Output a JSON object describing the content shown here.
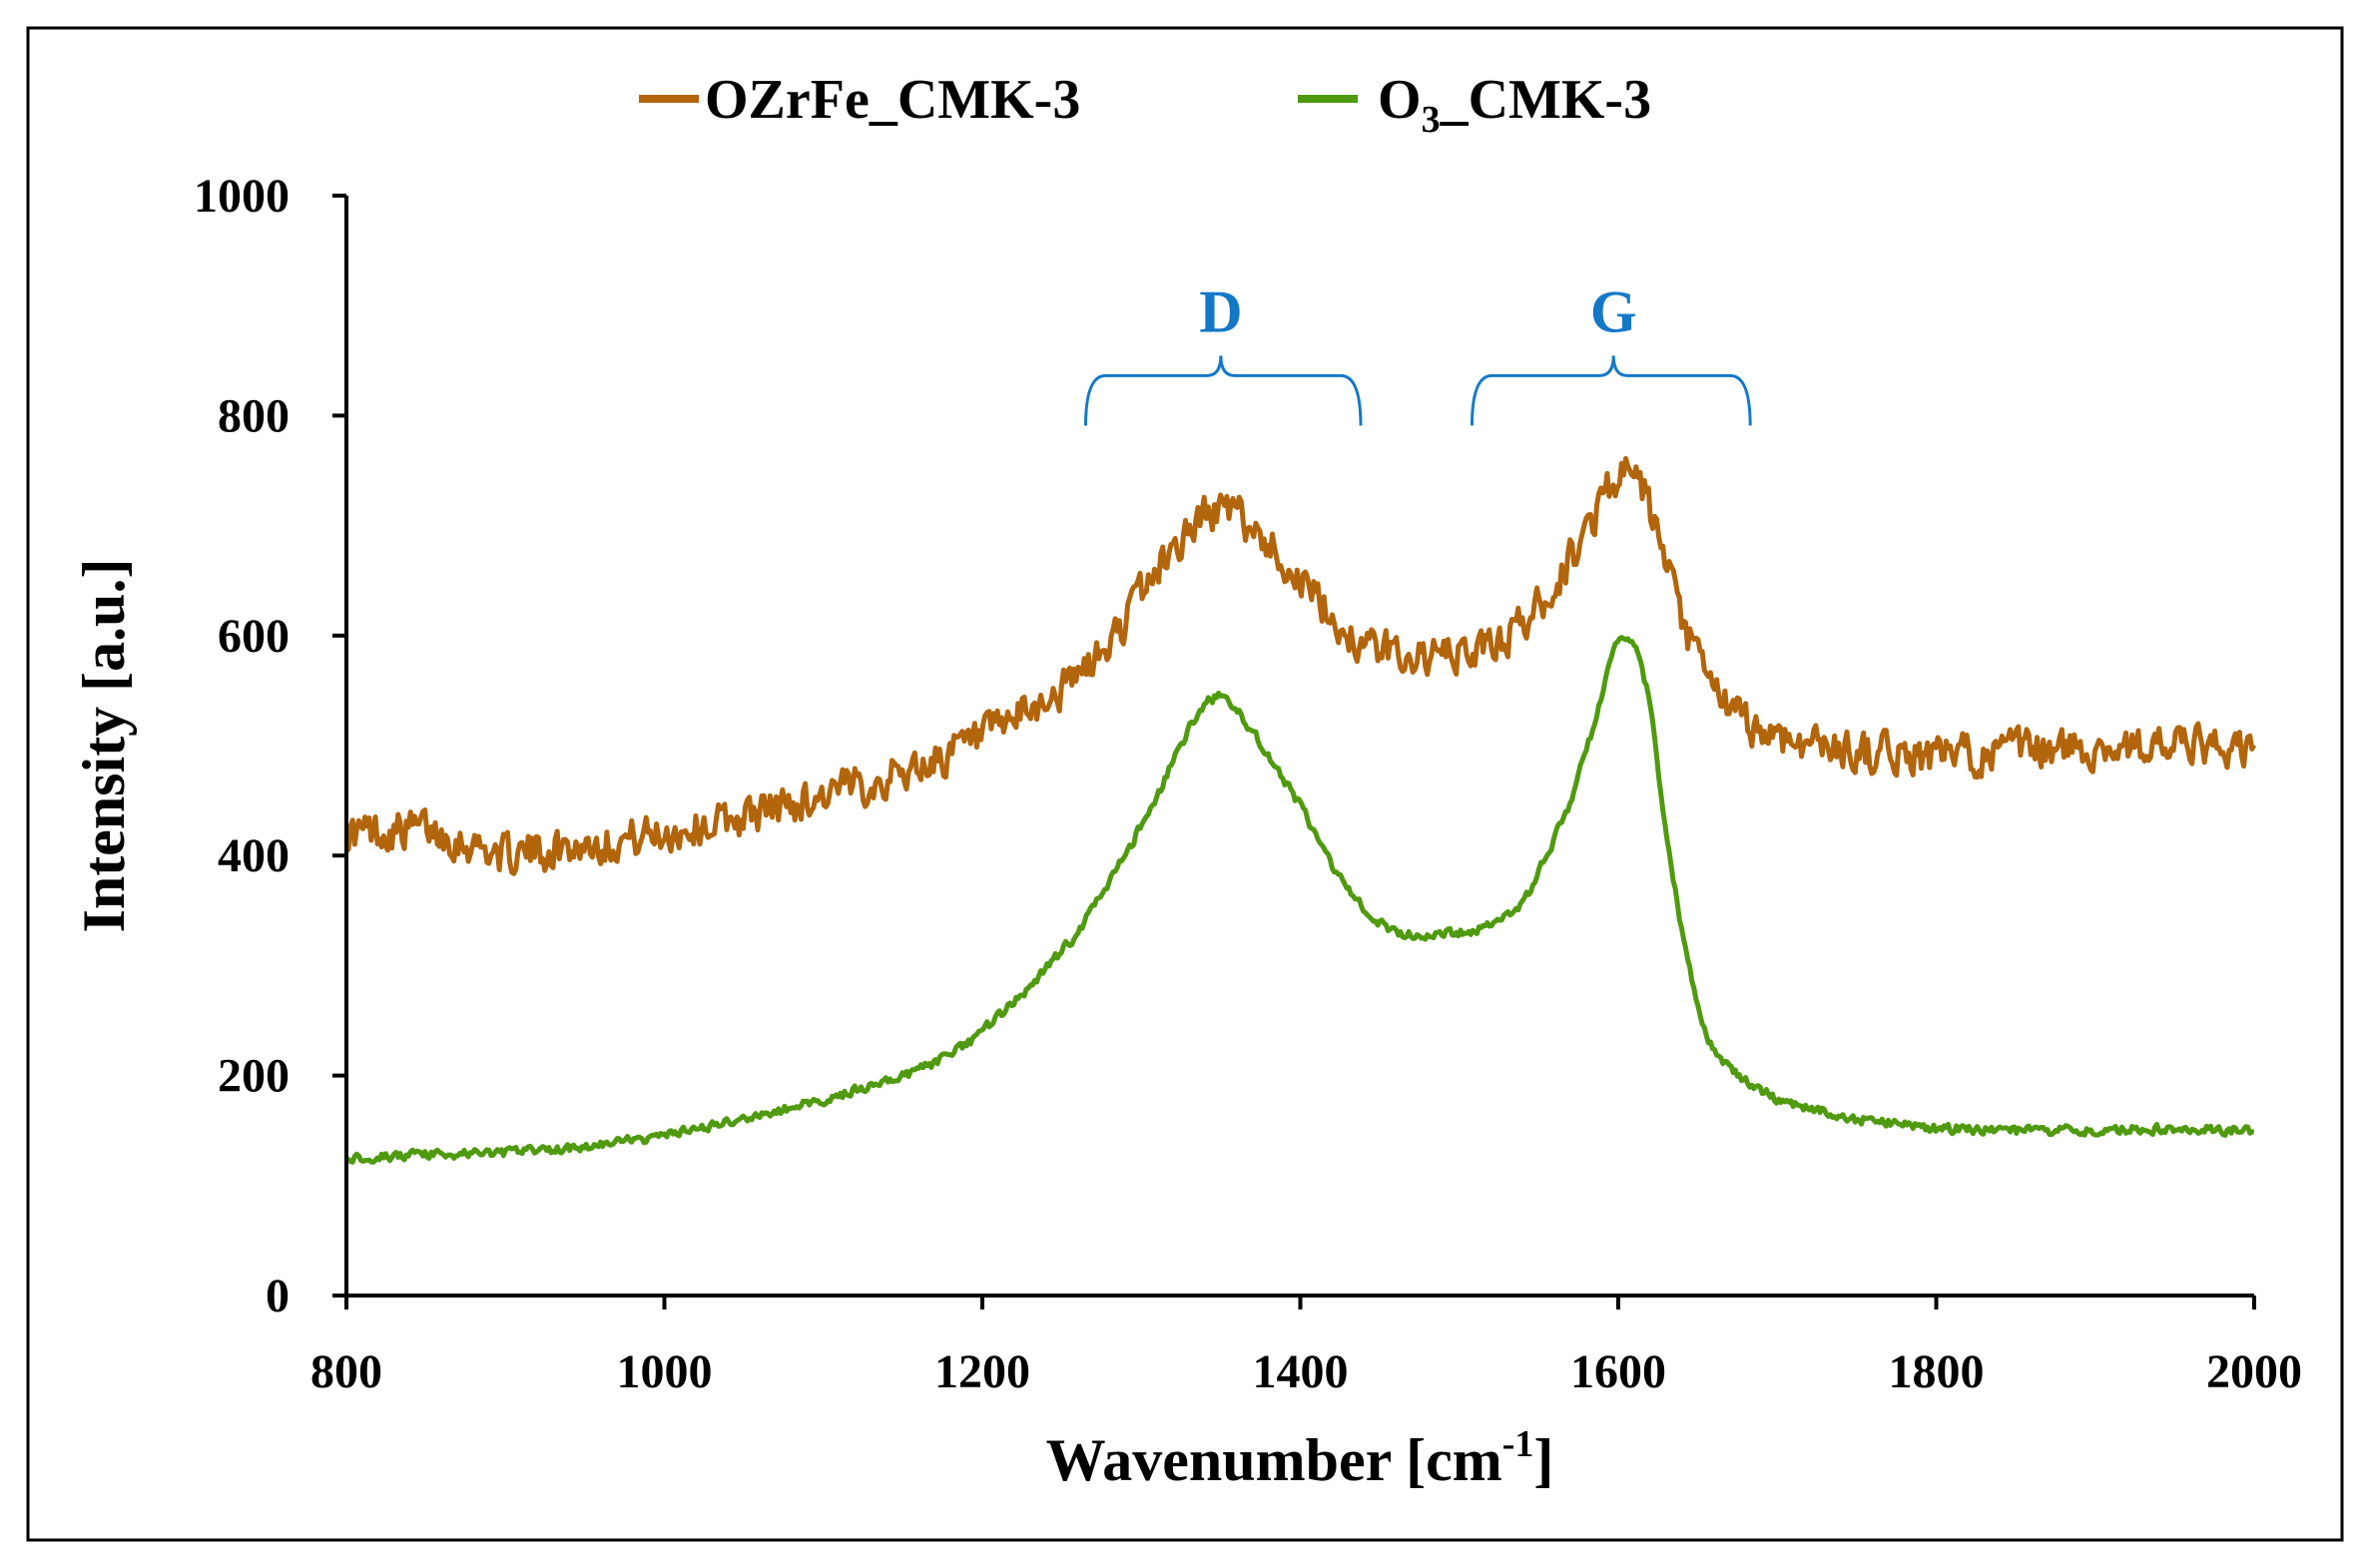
{
  "chart_data": {
    "type": "line",
    "title": "",
    "xlabel": "Wavenumber [cm",
    "xlabel_sup": "-1",
    "xlabel_close": "]",
    "ylabel": "Intensity [a.u.]",
    "xlim": [
      800,
      2000
    ],
    "ylim": [
      0,
      1000
    ],
    "x_ticks": [
      "800",
      "1000",
      "1200",
      "1400",
      "1600",
      "1800",
      "2000"
    ],
    "y_ticks": [
      "0",
      "200",
      "400",
      "600",
      "800",
      "1000"
    ],
    "grid": false,
    "legend_position": "top-center",
    "series": [
      {
        "name": "OZrFe_CMK-3",
        "color": "#B3650C",
        "noise": 25,
        "points": [
          [
            800,
            420
          ],
          [
            850,
            425
          ],
          [
            900,
            400
          ],
          [
            950,
            410
          ],
          [
            1000,
            420
          ],
          [
            1050,
            435
          ],
          [
            1100,
            455
          ],
          [
            1150,
            475
          ],
          [
            1200,
            505
          ],
          [
            1250,
            550
          ],
          [
            1280,
            590
          ],
          [
            1300,
            640
          ],
          [
            1320,
            680
          ],
          [
            1340,
            710
          ],
          [
            1350,
            715
          ],
          [
            1360,
            710
          ],
          [
            1380,
            685
          ],
          [
            1400,
            650
          ],
          [
            1420,
            615
          ],
          [
            1440,
            590
          ],
          [
            1460,
            585
          ],
          [
            1480,
            580
          ],
          [
            1500,
            582
          ],
          [
            1520,
            590
          ],
          [
            1540,
            610
          ],
          [
            1560,
            645
          ],
          [
            1580,
            695
          ],
          [
            1595,
            740
          ],
          [
            1605,
            745
          ],
          [
            1615,
            735
          ],
          [
            1625,
            690
          ],
          [
            1640,
            610
          ],
          [
            1660,
            550
          ],
          [
            1680,
            520
          ],
          [
            1700,
            508
          ],
          [
            1750,
            495
          ],
          [
            1800,
            490
          ],
          [
            1850,
            495
          ],
          [
            1900,
            498
          ],
          [
            1950,
            500
          ],
          [
            2000,
            495
          ]
        ]
      },
      {
        "name": "O3_CMK-3",
        "name_parts": [
          "O",
          "3",
          "_CMK-3"
        ],
        "color": "#4F9A0F",
        "noise": 6,
        "points": [
          [
            800,
            125
          ],
          [
            850,
            128
          ],
          [
            900,
            130
          ],
          [
            950,
            135
          ],
          [
            1000,
            145
          ],
          [
            1050,
            160
          ],
          [
            1100,
            178
          ],
          [
            1150,
            200
          ],
          [
            1180,
            218
          ],
          [
            1200,
            240
          ],
          [
            1230,
            280
          ],
          [
            1260,
            330
          ],
          [
            1290,
            400
          ],
          [
            1310,
            455
          ],
          [
            1330,
            515
          ],
          [
            1340,
            540
          ],
          [
            1350,
            545
          ],
          [
            1360,
            535
          ],
          [
            1380,
            490
          ],
          [
            1400,
            445
          ],
          [
            1420,
            390
          ],
          [
            1440,
            350
          ],
          [
            1460,
            330
          ],
          [
            1480,
            328
          ],
          [
            1500,
            330
          ],
          [
            1520,
            336
          ],
          [
            1540,
            355
          ],
          [
            1555,
            400
          ],
          [
            1570,
            450
          ],
          [
            1585,
            520
          ],
          [
            1595,
            580
          ],
          [
            1602,
            598
          ],
          [
            1610,
            595
          ],
          [
            1620,
            540
          ],
          [
            1630,
            420
          ],
          [
            1640,
            330
          ],
          [
            1650,
            260
          ],
          [
            1660,
            220
          ],
          [
            1680,
            195
          ],
          [
            1700,
            178
          ],
          [
            1750,
            160
          ],
          [
            1800,
            152
          ],
          [
            1850,
            150
          ],
          [
            1900,
            150
          ],
          [
            1950,
            152
          ],
          [
            2000,
            150
          ]
        ]
      }
    ],
    "annotations": [
      {
        "text": "D",
        "x_center": 1350,
        "x_from": 1265,
        "x_to": 1438,
        "y": 800,
        "color": "#1478C8"
      },
      {
        "text": "G",
        "x_center": 1597,
        "x_from": 1508,
        "x_to": 1683,
        "y": 800,
        "color": "#1478C8"
      }
    ]
  }
}
